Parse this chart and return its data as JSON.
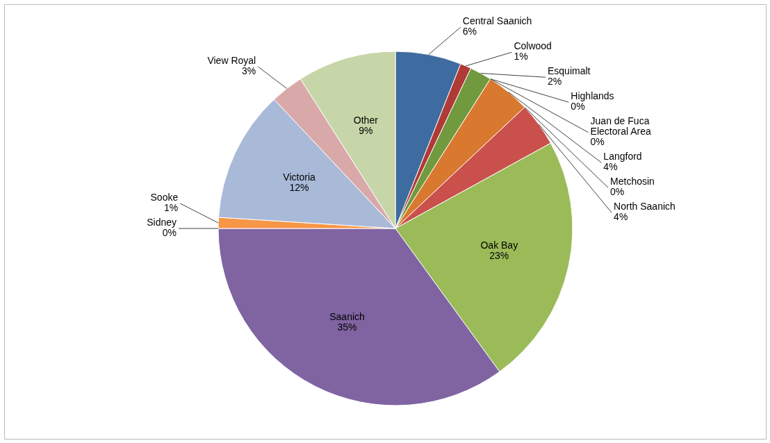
{
  "chart_data": {
    "type": "pie",
    "categories": [
      "Central Saanich",
      "Colwood",
      "Esquimalt",
      "Highlands",
      "Juan de Fuca Electoral Area",
      "Langford",
      "Metchosin",
      "North Saanich",
      "Oak Bay",
      "Saanich",
      "Sidney",
      "Sooke",
      "Victoria",
      "View Royal",
      "Other"
    ],
    "values": [
      6,
      1,
      2,
      0,
      0,
      4,
      0,
      4,
      23,
      35,
      0,
      1,
      12,
      3,
      9
    ],
    "value_labels": [
      "6%",
      "1%",
      "2%",
      "0%",
      "0%",
      "4%",
      "0%",
      "4%",
      "23%",
      "35%",
      "0%",
      "1%",
      "12%",
      "3%",
      "9%"
    ],
    "colors": [
      "#3e6ba0",
      "#b03a35",
      "#71993e",
      "#7a5f9c",
      "#3fa0b8",
      "#d9782f",
      "#2c4d75",
      "#c9504b",
      "#9bbb59",
      "#8064a2",
      "#4bacc6",
      "#f79646",
      "#a9b9d8",
      "#d9a9a9",
      "#c6d6a8"
    ]
  }
}
